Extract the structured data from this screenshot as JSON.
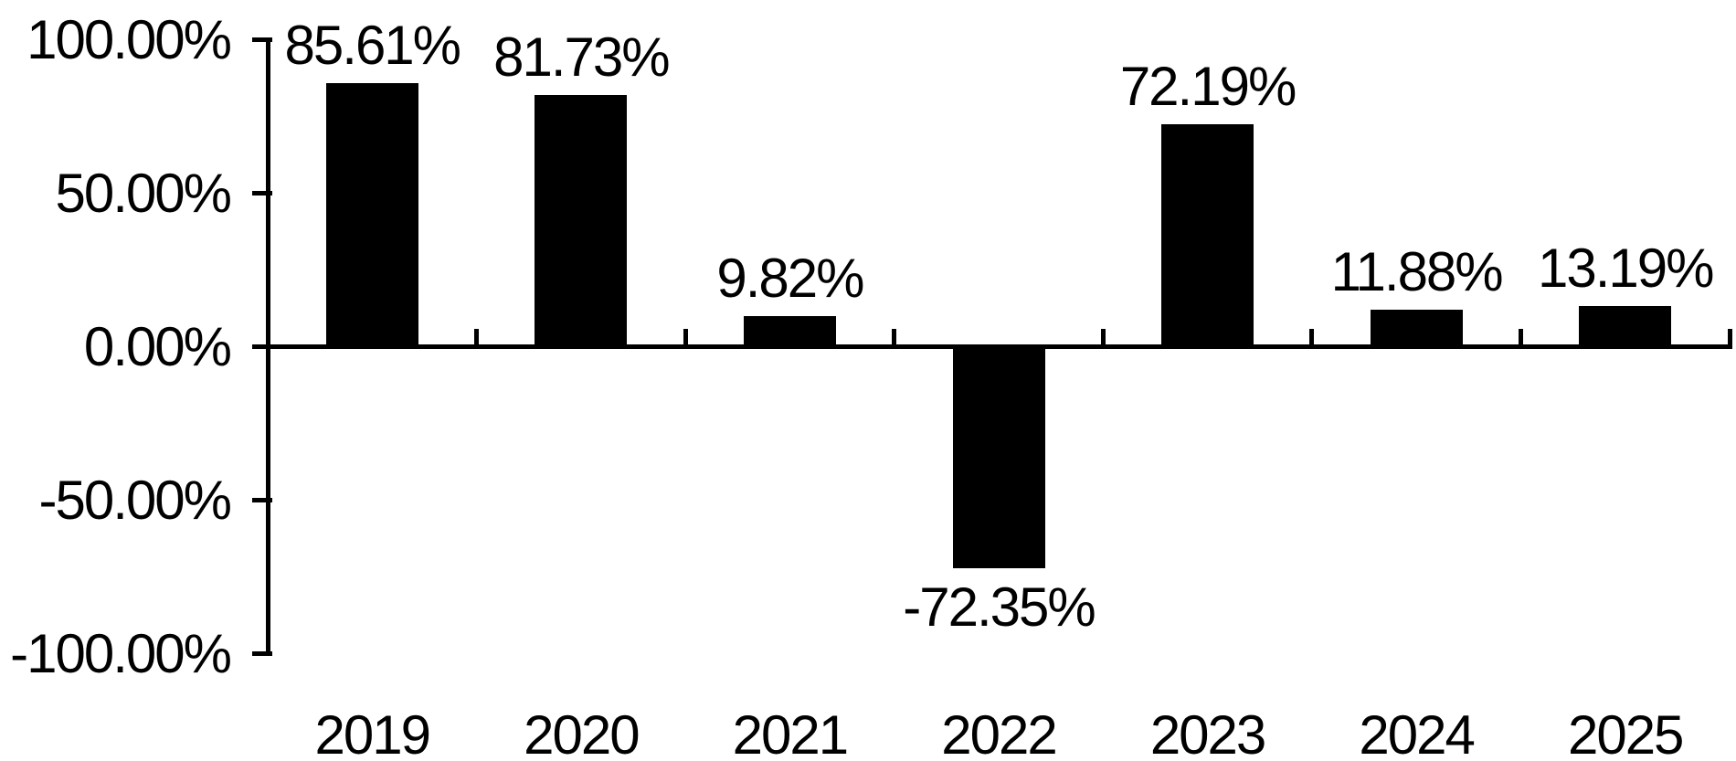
{
  "chart_data": {
    "type": "bar",
    "title": "",
    "xlabel": "",
    "ylabel": "",
    "categories": [
      "2019",
      "2020",
      "2021",
      "2022",
      "2023",
      "2024",
      "2025"
    ],
    "values": [
      85.61,
      81.73,
      9.82,
      -72.35,
      72.19,
      11.88,
      13.19
    ],
    "data_labels": [
      "85.61%",
      "81.73%",
      "9.82%",
      "-72.35%",
      "72.19%",
      "11.88%",
      "13.19%"
    ],
    "series_name": "",
    "ylim": [
      -100,
      100
    ],
    "ytick_step": 50,
    "ytick_values": [
      100,
      50,
      0,
      -50,
      -100
    ],
    "ytick_labels": [
      "100.00%",
      "50.00%",
      "0.00%",
      "-50.00%",
      "-100.00%"
    ],
    "grid": false,
    "legend_position": "none",
    "bar_color": "#000000",
    "axis_color": "#000000",
    "text_color": "#000000",
    "background_color": "#ffffff"
  }
}
